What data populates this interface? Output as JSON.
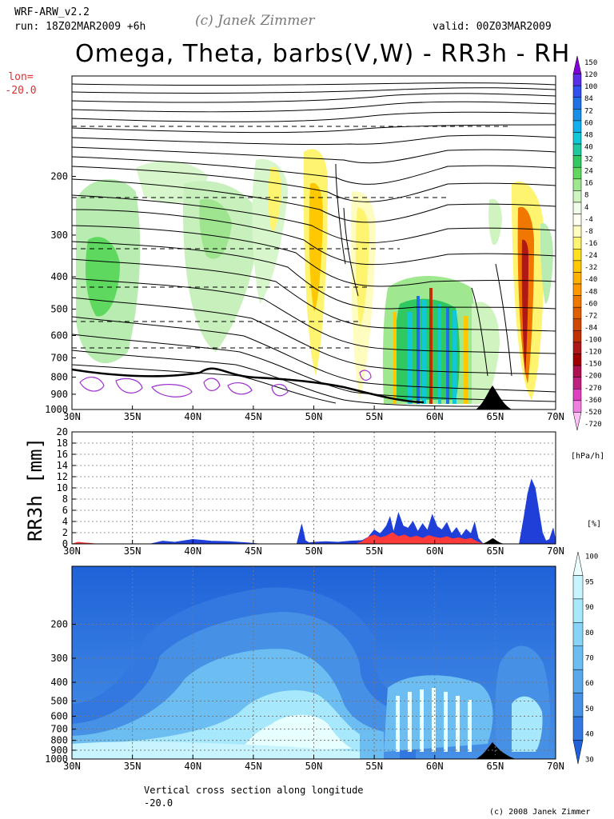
{
  "header": {
    "model": "WRF-ARW_v2.2",
    "run": "run: 18Z02MAR2009 +6h",
    "copyright_top": "(c) Janek Zimmer",
    "valid": "valid: 00Z03MAR2009",
    "title": "Omega, Theta, barbs(V,W) - RR3h - RH",
    "lon_label": "lon=",
    "lon_value": "-20.0"
  },
  "footer": {
    "caption_line1": "Vertical cross section along longitude",
    "caption_line2": "-20.0",
    "copyright": "(c) 2008 Janek Zimmer"
  },
  "colors": {
    "precip_blue": "#1f3fd8",
    "precip_red": "#ff3a3a",
    "terrain": "#000000",
    "rh_dark": "#1f6fd6",
    "rh_light": "#e8ffff"
  },
  "chart_data": [
    {
      "type": "heatmap",
      "title": "Omega, Theta, barbs(V,W)",
      "x_ticks": [
        "30N",
        "35N",
        "40N",
        "45N",
        "50N",
        "55N",
        "60N",
        "65N",
        "70N"
      ],
      "y_ticks": [
        "200",
        "300",
        "400",
        "500",
        "600",
        "700",
        "800",
        "900",
        "1000"
      ],
      "ylim": [
        1000,
        100
      ],
      "xlim": [
        30,
        70
      ],
      "colorbar": {
        "unit": "[hPa/h]",
        "labels": [
          "150",
          "120",
          "100",
          "84",
          "72",
          "60",
          "48",
          "40",
          "32",
          "24",
          "16",
          "8",
          "4",
          "-4",
          "-8",
          "-16",
          "-24",
          "-32",
          "-40",
          "-48",
          "-60",
          "-72",
          "-84",
          "-100",
          "-120",
          "-150",
          "-200",
          "-270",
          "-360",
          "-520",
          "-720"
        ],
        "colors": [
          "#8000d8",
          "#5a2fe8",
          "#3050f0",
          "#2070e8",
          "#1890e8",
          "#10b0f0",
          "#10c8d8",
          "#20c8a0",
          "#30c860",
          "#60d860",
          "#a0e890",
          "#d0f4c0",
          "#f0fce8",
          "#fffff0",
          "#fffcc0",
          "#fff470",
          "#ffe020",
          "#ffc800",
          "#ffb000",
          "#ff9800",
          "#f07800",
          "#e06000",
          "#d04800",
          "#c03000",
          "#b01818",
          "#a00000",
          "#b01050",
          "#c02080",
          "#e040c0",
          "#f080e0",
          "#ffc0f8"
        ]
      }
    },
    {
      "type": "area",
      "ylabel": "RR3h [mm]",
      "x_ticks": [
        "30N",
        "35N",
        "40N",
        "45N",
        "50N",
        "55N",
        "60N",
        "65N",
        "70N"
      ],
      "y_ticks": [
        "0",
        "2",
        "4",
        "6",
        "8",
        "10",
        "12",
        "14",
        "16",
        "18",
        "20"
      ],
      "ylim": [
        0,
        20
      ],
      "series": [
        {
          "color": "#1f3fd8",
          "x": [
            30,
            36.5,
            37.5,
            38.5,
            40,
            41.5,
            43,
            44.5,
            45.5,
            48.6,
            49,
            49.3,
            49.6,
            50,
            51,
            52,
            53,
            54,
            54.5,
            55,
            55.5,
            56,
            56.3,
            56.6,
            57,
            57.4,
            57.8,
            58.2,
            58.6,
            59,
            59.4,
            59.8,
            60.2,
            60.6,
            61,
            61.4,
            61.8,
            62.2,
            62.6,
            63,
            63.3,
            63.6,
            64,
            66,
            67,
            67.4,
            67.7,
            68,
            68.3,
            68.6,
            68.9,
            69.2,
            69.5,
            69.8,
            70
          ],
          "y": [
            0,
            0,
            0.5,
            0.3,
            0.8,
            0.5,
            0.4,
            0.2,
            0,
            0,
            3.5,
            0.6,
            0.2,
            0.3,
            0.4,
            0.3,
            0.5,
            0.6,
            1.2,
            2.5,
            1.8,
            3.2,
            4.8,
            2.1,
            5.5,
            3.2,
            2.8,
            4.0,
            2.2,
            3.6,
            2.4,
            5.2,
            3.1,
            2.5,
            3.8,
            1.8,
            2.9,
            1.4,
            2.6,
            1.8,
            3.8,
            1.0,
            0,
            0,
            0,
            5,
            9,
            11.5,
            10,
            6,
            2,
            0.5,
            0.8,
            2.8,
            0.5
          ]
        },
        {
          "color": "#ff3a3a",
          "x": [
            30,
            30.5,
            31,
            31.5,
            32,
            53.5,
            54,
            54.5,
            55,
            55.5,
            56,
            56.5,
            57,
            57.5,
            58,
            58.5,
            59,
            59.5,
            60,
            60.5,
            61,
            61.5,
            62,
            62.5,
            63,
            63.5,
            64
          ],
          "y": [
            0,
            0.3,
            0.2,
            0.1,
            0,
            0,
            0.4,
            1.2,
            1.6,
            1.1,
            1.4,
            2.0,
            1.3,
            1.6,
            1.1,
            1.4,
            1.0,
            1.5,
            1.2,
            1.0,
            1.3,
            0.9,
            1.1,
            0.8,
            1.0,
            0.4,
            0
          ]
        }
      ],
      "terrain_peak_lat": 64.8
    },
    {
      "type": "heatmap",
      "title": "RH",
      "x_ticks": [
        "30N",
        "35N",
        "40N",
        "45N",
        "50N",
        "55N",
        "60N",
        "65N",
        "70N"
      ],
      "y_ticks": [
        "200",
        "300",
        "400",
        "500",
        "600",
        "700",
        "800",
        "900",
        "1000"
      ],
      "ylim": [
        1000,
        100
      ],
      "colorbar": {
        "unit": "[%]",
        "labels": [
          "100",
          "95",
          "90",
          "80",
          "70",
          "60",
          "50",
          "40",
          "30"
        ],
        "colors": [
          "#eaffff",
          "#c8f4ff",
          "#a8e8fc",
          "#88d4f8",
          "#6cbef2",
          "#58a8ec",
          "#4690e6",
          "#3278e0",
          "#1f62d8"
        ]
      }
    }
  ]
}
